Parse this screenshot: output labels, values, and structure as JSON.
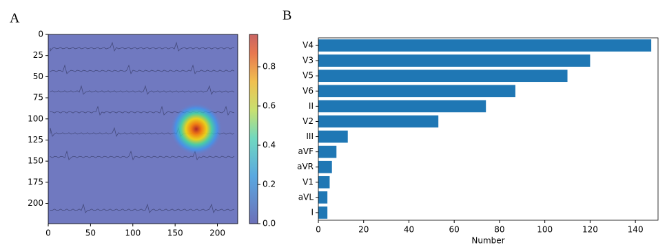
{
  "chart_data": [
    {
      "type": "heatmap",
      "label": "A",
      "xlim": [
        0,
        224
      ],
      "ylim": [
        224,
        0
      ],
      "xticks": [
        0,
        50,
        100,
        150,
        200
      ],
      "yticks": [
        0,
        25,
        50,
        75,
        100,
        125,
        150,
        175,
        200
      ],
      "hotspot": {
        "x": 175,
        "y": 112,
        "value": 0.96
      },
      "colorbar_lim": [
        0,
        0.965
      ],
      "colorbar_ticks": [
        {
          "value": 0,
          "label": "0.0"
        },
        {
          "value": 0.2,
          "label": "0.2"
        },
        {
          "value": 0.4,
          "label": "0.4"
        },
        {
          "value": 0.6,
          "label": "0.6"
        },
        {
          "value": 0.8,
          "label": "0.8"
        }
      ]
    },
    {
      "type": "barh",
      "label": "B",
      "xlabel": "Number",
      "color": "#1f77b4",
      "categories": [
        "V4",
        "V3",
        "V5",
        "V6",
        "II",
        "V2",
        "III",
        "aVF",
        "aVR",
        "V1",
        "aVL",
        "I"
      ],
      "values": [
        147,
        120,
        110,
        87,
        74,
        53,
        13,
        8,
        6,
        5,
        4,
        4
      ],
      "xlim": [
        0,
        150
      ],
      "xticks": [
        0,
        20,
        40,
        60,
        80,
        100,
        120,
        140
      ]
    }
  ]
}
